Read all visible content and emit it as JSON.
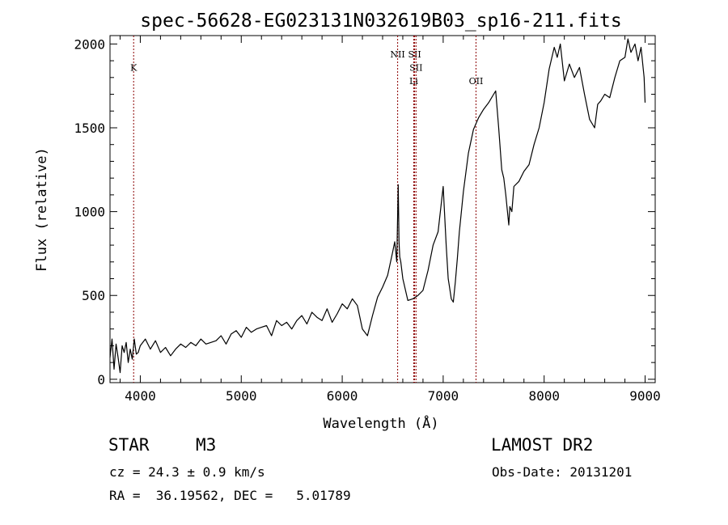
{
  "chart_data": {
    "type": "line",
    "title": "spec-56628-EG023131N032619B03_sp16-211.fits",
    "xlabel": "Wavelength (Å)",
    "ylabel": "Flux (relative)",
    "xlim": [
      3700,
      9100
    ],
    "ylim": [
      -20,
      2050
    ],
    "x_ticks": [
      "4000",
      "5000",
      "6000",
      "7000",
      "8000",
      "9000"
    ],
    "y_ticks": [
      "0",
      "500",
      "1000",
      "1500",
      "2000"
    ],
    "grid": false,
    "series": [
      {
        "x": [
          3700,
          3720,
          3740,
          3760,
          3780,
          3800,
          3820,
          3840,
          3860,
          3880,
          3900,
          3920,
          3940,
          3960,
          3980,
          4000,
          4050,
          4100,
          4150,
          4200,
          4250,
          4300,
          4350,
          4400,
          4450,
          4500,
          4550,
          4600,
          4650,
          4700,
          4750,
          4800,
          4850,
          4900,
          4950,
          5000,
          5050,
          5100,
          5150,
          5200,
          5250,
          5300,
          5350,
          5400,
          5450,
          5500,
          5550,
          5600,
          5650,
          5700,
          5750,
          5800,
          5850,
          5900,
          5950,
          6000,
          6050,
          6100,
          6150,
          6200,
          6250,
          6300,
          6350,
          6400,
          6450,
          6500,
          6520,
          6540,
          6555,
          6563,
          6570,
          6580,
          6600,
          6650,
          6700,
          6750,
          6800,
          6850,
          6900,
          6950,
          7000,
          7030,
          7050,
          7060,
          7080,
          7100,
          7120,
          7140,
          7160,
          7200,
          7250,
          7300,
          7350,
          7400,
          7450,
          7500,
          7520,
          7550,
          7580,
          7600,
          7620,
          7650,
          7660,
          7680,
          7700,
          7750,
          7800,
          7850,
          7900,
          7950,
          8000,
          8050,
          8100,
          8130,
          8160,
          8200,
          8250,
          8300,
          8350,
          8400,
          8450,
          8500,
          8530,
          8560,
          8600,
          8650,
          8700,
          8750,
          8800,
          8830,
          8860,
          8900,
          8930,
          8960,
          8990,
          9000
        ],
        "values": [
          130,
          240,
          60,
          210,
          130,
          40,
          200,
          160,
          220,
          100,
          180,
          120,
          240,
          150,
          160,
          200,
          240,
          180,
          230,
          160,
          190,
          140,
          180,
          210,
          190,
          220,
          200,
          240,
          210,
          220,
          230,
          260,
          210,
          270,
          290,
          250,
          310,
          280,
          300,
          310,
          320,
          260,
          350,
          320,
          340,
          300,
          350,
          380,
          330,
          400,
          370,
          350,
          420,
          340,
          390,
          450,
          420,
          480,
          440,
          300,
          260,
          380,
          490,
          550,
          620,
          760,
          820,
          700,
          1160,
          820,
          730,
          700,
          600,
          470,
          480,
          500,
          530,
          650,
          800,
          880,
          1150,
          800,
          600,
          560,
          480,
          460,
          580,
          720,
          880,
          1120,
          1350,
          1490,
          1560,
          1610,
          1650,
          1700,
          1720,
          1500,
          1250,
          1200,
          1100,
          920,
          1030,
          1000,
          1150,
          1180,
          1240,
          1280,
          1400,
          1500,
          1650,
          1850,
          1980,
          1920,
          2000,
          1780,
          1880,
          1800,
          1860,
          1700,
          1550,
          1500,
          1640,
          1660,
          1700,
          1680,
          1800,
          1900,
          1920,
          2030,
          1950,
          2000,
          1900,
          1980,
          1800,
          1650
        ]
      }
    ],
    "line_markers": [
      {
        "label": "K",
        "x": 3934,
        "label_flux": 1840
      },
      {
        "label": "NII",
        "x": 6549,
        "label_flux": 1920
      },
      {
        "label": "SII",
        "x": 6717,
        "label_flux": 1920
      },
      {
        "label": "SII",
        "x": 6731,
        "label_flux": 1840
      },
      {
        "label": "Li",
        "x": 6708,
        "label_flux": 1760
      },
      {
        "label": "OII",
        "x": 7325,
        "label_flux": 1760
      }
    ]
  },
  "info": {
    "class_label": "STAR",
    "subclass": "M3",
    "survey": "LAMOST DR2",
    "cz": "cz = 24.3 ± 0.9 km/s",
    "obs_date": "Obs-Date: 20131201",
    "coords": "RA =  36.19562, DEC =   5.01789"
  },
  "colors": {
    "spectrum": "#000000",
    "line_marker": "#8b0000",
    "axes": "#000000",
    "background": "#ffffff"
  }
}
